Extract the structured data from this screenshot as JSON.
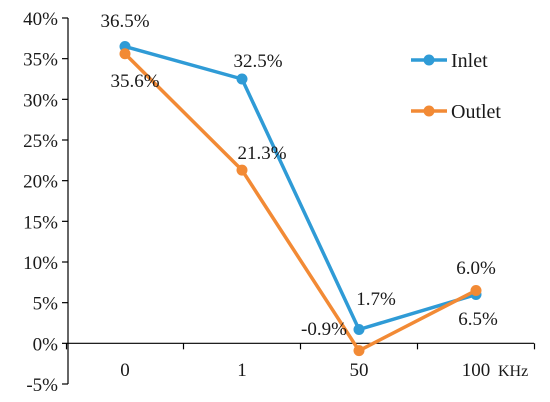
{
  "chart_data": {
    "type": "line",
    "categories": [
      "0",
      "1",
      "50",
      "100"
    ],
    "x_unit": "KHz",
    "y_ticks": [
      "-5%",
      "0%",
      "5%",
      "10%",
      "15%",
      "20%",
      "25%",
      "30%",
      "35%",
      "40%"
    ],
    "ylim": [
      -5,
      40
    ],
    "grid": false,
    "legend_position": "top-right",
    "series": [
      {
        "name": "Inlet",
        "color": "#2f9bd6",
        "values": [
          36.5,
          32.5,
          1.7,
          6.0
        ],
        "labels": [
          "36.5%",
          "32.5%",
          "1.7%",
          "6.0%"
        ]
      },
      {
        "name": "Outlet",
        "color": "#f28a35",
        "values": [
          35.6,
          21.3,
          -0.9,
          6.5
        ],
        "labels": [
          "35.6%",
          "21.3%",
          "-0.9%",
          "6.5%"
        ]
      }
    ]
  }
}
